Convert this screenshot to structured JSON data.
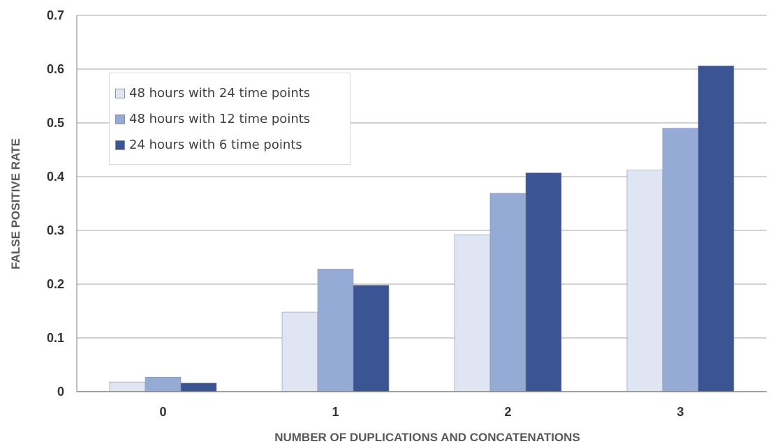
{
  "chart_data": {
    "type": "bar",
    "categories": [
      "0",
      "1",
      "2",
      "3"
    ],
    "series": [
      {
        "name": "48 hours with 24 time points",
        "color": "#dfe5f3",
        "values": [
          0.018,
          0.148,
          0.292,
          0.412
        ]
      },
      {
        "name": "48 hours with 12 time points",
        "color": "#96aad6",
        "values": [
          0.027,
          0.228,
          0.369,
          0.49
        ]
      },
      {
        "name": "24 hours with 6 time points",
        "color": "#3b5494",
        "values": [
          0.016,
          0.198,
          0.407,
          0.606
        ]
      }
    ],
    "xlabel": "NUMBER OF DUPLICATIONS AND CONCATENATIONS",
    "ylabel": "FALSE POSITIVE RATE",
    "ylim": [
      0,
      0.7
    ],
    "yticks": [
      "0",
      "0.1",
      "0.2",
      "0.3",
      "0.4",
      "0.5",
      "0.6",
      "0.7"
    ],
    "grid": true,
    "legend_position": "top-left",
    "gridline_color": "#a6a6a6"
  }
}
